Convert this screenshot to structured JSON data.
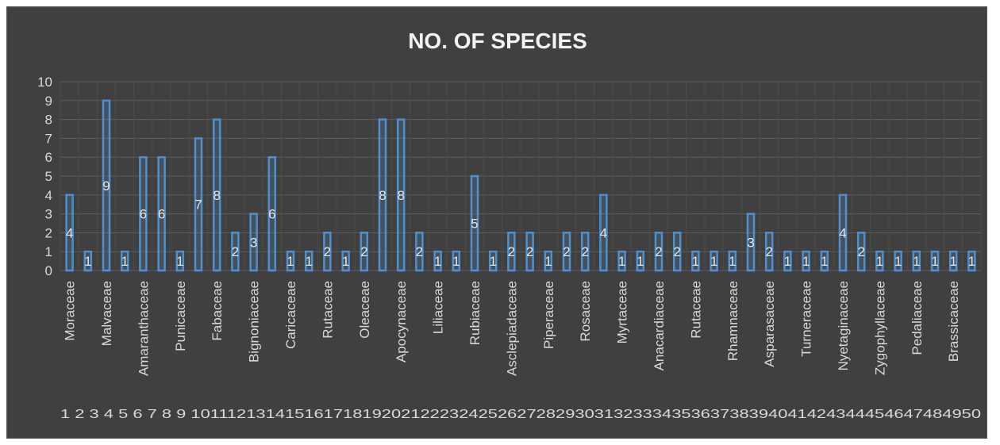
{
  "chart_data": {
    "type": "bar",
    "title": "NO. OF SPECIES",
    "xlabel": "",
    "ylabel": "",
    "ylim": [
      0,
      10
    ],
    "y_ticks": [
      "0",
      "1",
      "2",
      "3",
      "4",
      "5",
      "6",
      "7",
      "8",
      "9",
      "10"
    ],
    "grid": true,
    "legend": "none",
    "categories": [
      "1",
      "2",
      "3",
      "4",
      "5",
      "6",
      "7",
      "8",
      "9",
      "10",
      "11",
      "12",
      "13",
      "14",
      "15",
      "16",
      "17",
      "18",
      "19",
      "20",
      "21",
      "22",
      "23",
      "24",
      "25",
      "26",
      "27",
      "28",
      "29",
      "30",
      "31",
      "32",
      "33",
      "34",
      "35",
      "36",
      "37",
      "38",
      "39",
      "40",
      "41",
      "42",
      "43",
      "44",
      "45",
      "46",
      "47",
      "48",
      "49",
      "50"
    ],
    "x_tick_text": "1 2 3 4 5 6 7 8 9 1011121314151617181920212223242526272829303132333435363738394041424344454647484950",
    "values": [
      4,
      1,
      9,
      1,
      6,
      6,
      1,
      7,
      8,
      2,
      3,
      6,
      1,
      1,
      2,
      1,
      2,
      8,
      8,
      2,
      1,
      1,
      5,
      1,
      2,
      2,
      1,
      2,
      2,
      4,
      1,
      1,
      2,
      2,
      1,
      1,
      1,
      3,
      2,
      1,
      1,
      1,
      4,
      2,
      1,
      1,
      1,
      1,
      1,
      1
    ],
    "family_labels": [
      {
        "category": "1",
        "label": "Moraceae"
      },
      {
        "category": "3",
        "label": "Malvaceae"
      },
      {
        "category": "5",
        "label": "Amaranthaceae"
      },
      {
        "category": "7",
        "label": "Punicaceae"
      },
      {
        "category": "9",
        "label": "Fabaceae"
      },
      {
        "category": "11",
        "label": "Bignoniaceae"
      },
      {
        "category": "13",
        "label": "Caricaceae"
      },
      {
        "category": "15",
        "label": "Rutaceae"
      },
      {
        "category": "17",
        "label": "Oleaceae"
      },
      {
        "category": "19",
        "label": "Apocynaceae"
      },
      {
        "category": "21",
        "label": "Liliaceae"
      },
      {
        "category": "23",
        "label": "Rubiaceae"
      },
      {
        "category": "25",
        "label": "Asclepiadaceae"
      },
      {
        "category": "27",
        "label": "Piperaceae"
      },
      {
        "category": "29",
        "label": "Rosaceae"
      },
      {
        "category": "31",
        "label": "Myrtaceae"
      },
      {
        "category": "33",
        "label": "Anacardiaceae"
      },
      {
        "category": "35",
        "label": "Rutaceae"
      },
      {
        "category": "37",
        "label": "Rhamnaceae"
      },
      {
        "category": "39",
        "label": "Asparasaceae"
      },
      {
        "category": "41",
        "label": "Turneraceae"
      },
      {
        "category": "43",
        "label": "Nyetaginaceae"
      },
      {
        "category": "45",
        "label": "Zygophyllaceae"
      },
      {
        "category": "47",
        "label": "Pedaliaceae"
      },
      {
        "category": "49",
        "label": "Brassicaceae"
      }
    ],
    "colors": {
      "background": "#404040",
      "bar_stroke": "#4f8fd0",
      "text": "#d9d9d9"
    }
  }
}
